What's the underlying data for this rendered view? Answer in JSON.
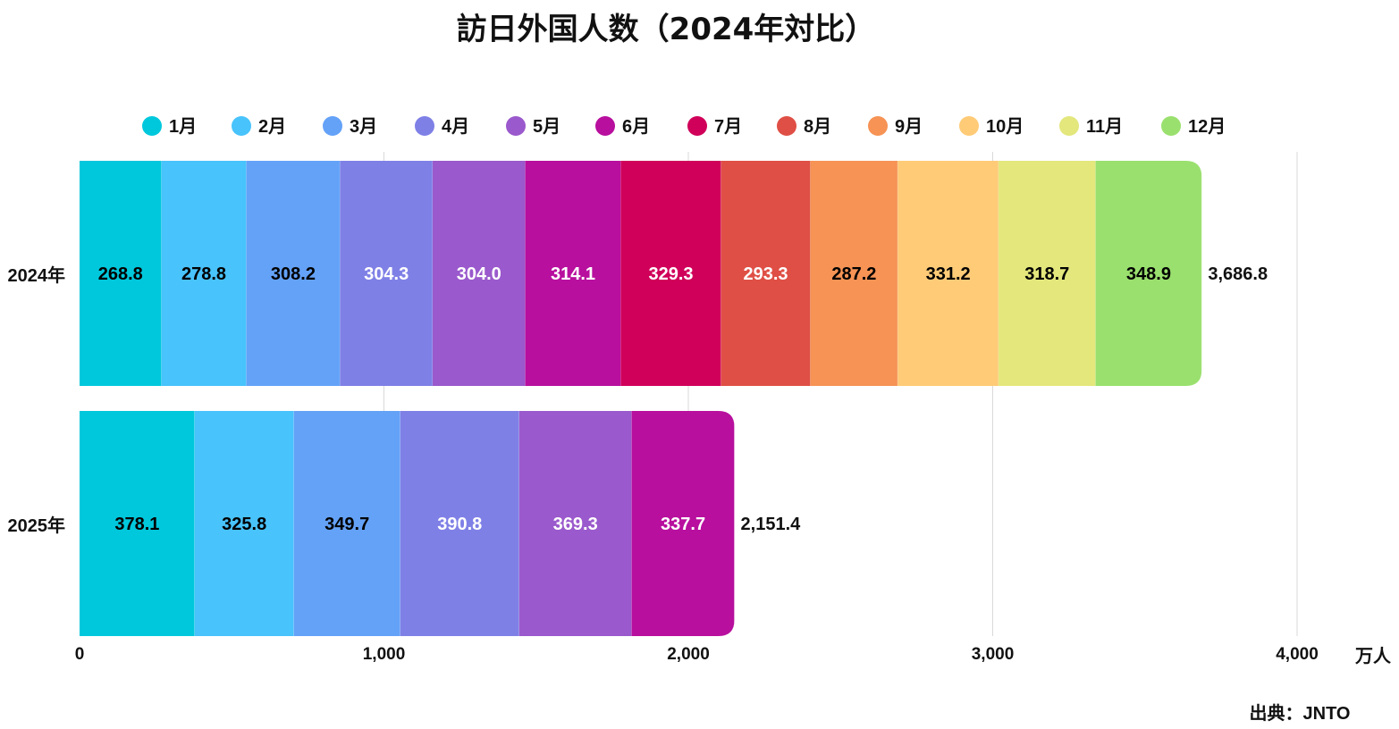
{
  "chart_data": {
    "type": "bar",
    "orientation": "horizontal",
    "stacked": true,
    "title": "訪日外国人数（2024年対比）",
    "unit_label": "万人",
    "source": "出典：JNTO",
    "categories": [
      "2024年",
      "2025年"
    ],
    "series": [
      {
        "name": "1月",
        "color": "#00C8DC",
        "label_color": "#000000",
        "values": [
          268.8,
          378.1
        ]
      },
      {
        "name": "2月",
        "color": "#48C3FC",
        "label_color": "#000000",
        "values": [
          278.8,
          325.8
        ]
      },
      {
        "name": "3月",
        "color": "#64A2F8",
        "label_color": "#000000",
        "values": [
          308.2,
          349.7
        ]
      },
      {
        "name": "4月",
        "color": "#7F80E6",
        "label_color": "#FFFFFF",
        "values": [
          304.3,
          390.8
        ]
      },
      {
        "name": "5月",
        "color": "#9A59CC",
        "label_color": "#FFFFFF",
        "values": [
          304.0,
          369.3
        ]
      },
      {
        "name": "6月",
        "color": "#B80F9E",
        "label_color": "#FFFFFF",
        "values": [
          314.1,
          337.7
        ]
      },
      {
        "name": "7月",
        "color": "#D0005A",
        "label_color": "#FFFFFF",
        "values": [
          329.3,
          null
        ]
      },
      {
        "name": "8月",
        "color": "#DF4F45",
        "label_color": "#FFFFFF",
        "values": [
          293.3,
          null
        ]
      },
      {
        "name": "9月",
        "color": "#F69355",
        "label_color": "#000000",
        "values": [
          287.2,
          null
        ]
      },
      {
        "name": "10月",
        "color": "#FFCB77",
        "label_color": "#000000",
        "values": [
          331.2,
          null
        ]
      },
      {
        "name": "11月",
        "color": "#E3E77C",
        "label_color": "#000000",
        "values": [
          318.7,
          null
        ]
      },
      {
        "name": "12月",
        "color": "#9AE06E",
        "label_color": "#000000",
        "values": [
          348.9,
          null
        ]
      }
    ],
    "totals": [
      "3,686.8",
      "2,151.4"
    ],
    "xlim": [
      0,
      4000
    ],
    "xticks": [
      0,
      1000,
      2000,
      3000,
      4000
    ],
    "xtick_labels": [
      "0",
      "1,000",
      "2,000",
      "3,000",
      "4,000"
    ],
    "grid": true,
    "legend_position": "top"
  }
}
